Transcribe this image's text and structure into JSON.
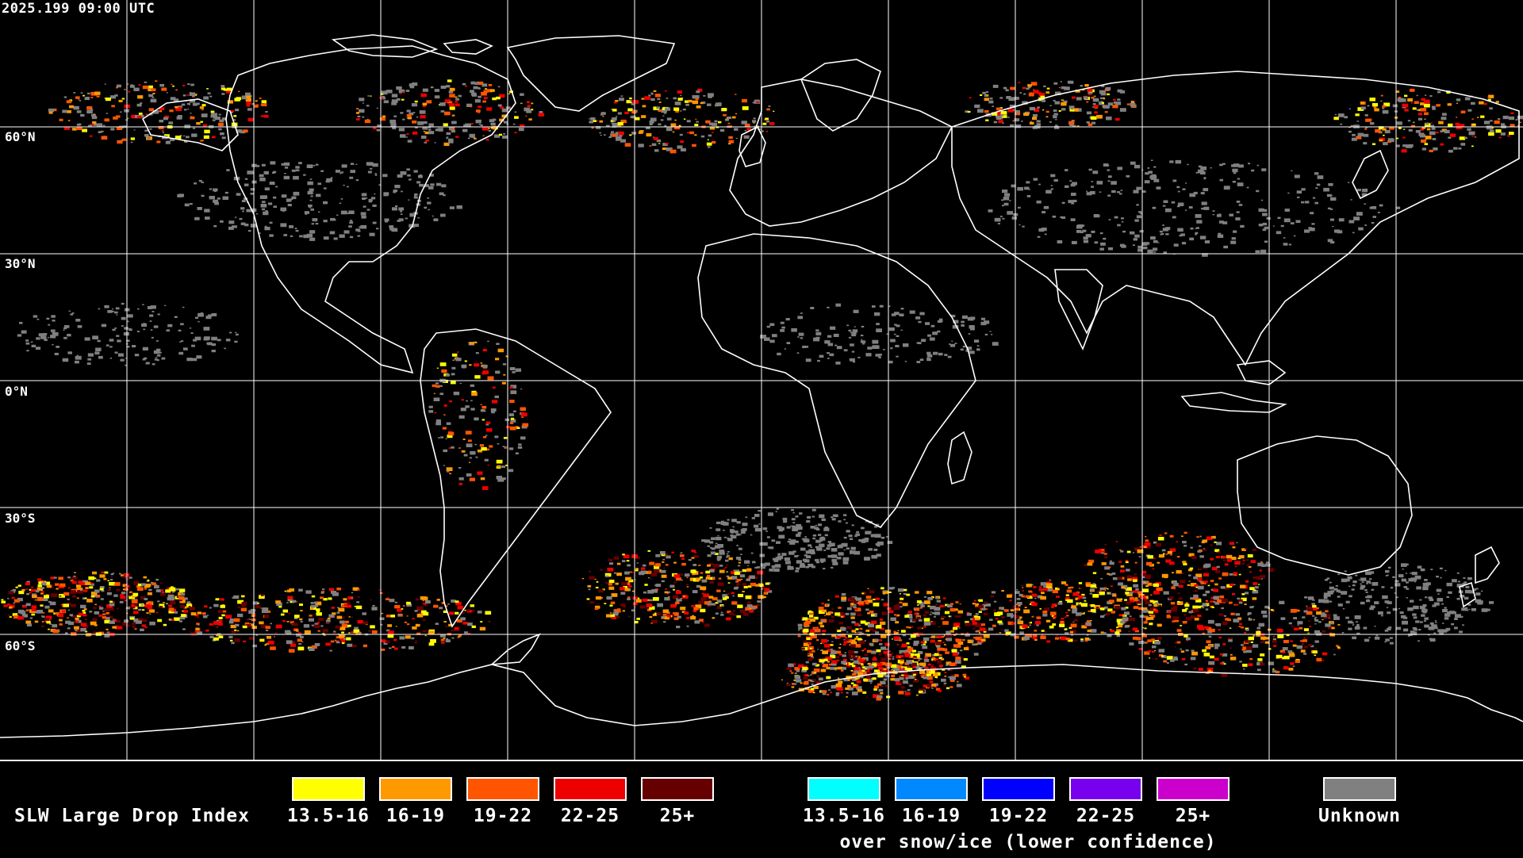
{
  "header": {
    "timestamp": "2025.199 09:00 UTC"
  },
  "map": {
    "latitude_labels": [
      "60°N",
      "30°N",
      "0°N",
      "30°S",
      "60°S"
    ],
    "colors": {
      "background": "#000000",
      "coastline": "#ffffff",
      "gridline": "#ffffff",
      "unknown_cloud": "#808080"
    }
  },
  "legend": {
    "title": "SLW Large Drop Index",
    "main_bins": [
      {
        "label": "13.5-16",
        "color": "#ffff00"
      },
      {
        "label": "16-19",
        "color": "#ff9900"
      },
      {
        "label": "19-22",
        "color": "#ff5500"
      },
      {
        "label": "22-25",
        "color": "#ee0000"
      },
      {
        "label": "25+",
        "color": "#660000"
      }
    ],
    "snow_bins": [
      {
        "label": "13.5-16",
        "color": "#00ffff"
      },
      {
        "label": "16-19",
        "color": "#0088ff"
      },
      {
        "label": "19-22",
        "color": "#0000ff"
      },
      {
        "label": "22-25",
        "color": "#7700ee"
      },
      {
        "label": "25+",
        "color": "#cc00cc"
      }
    ],
    "snow_caption": "over snow/ice (lower confidence)",
    "unknown": {
      "label": "Unknown",
      "color": "#808080"
    }
  }
}
